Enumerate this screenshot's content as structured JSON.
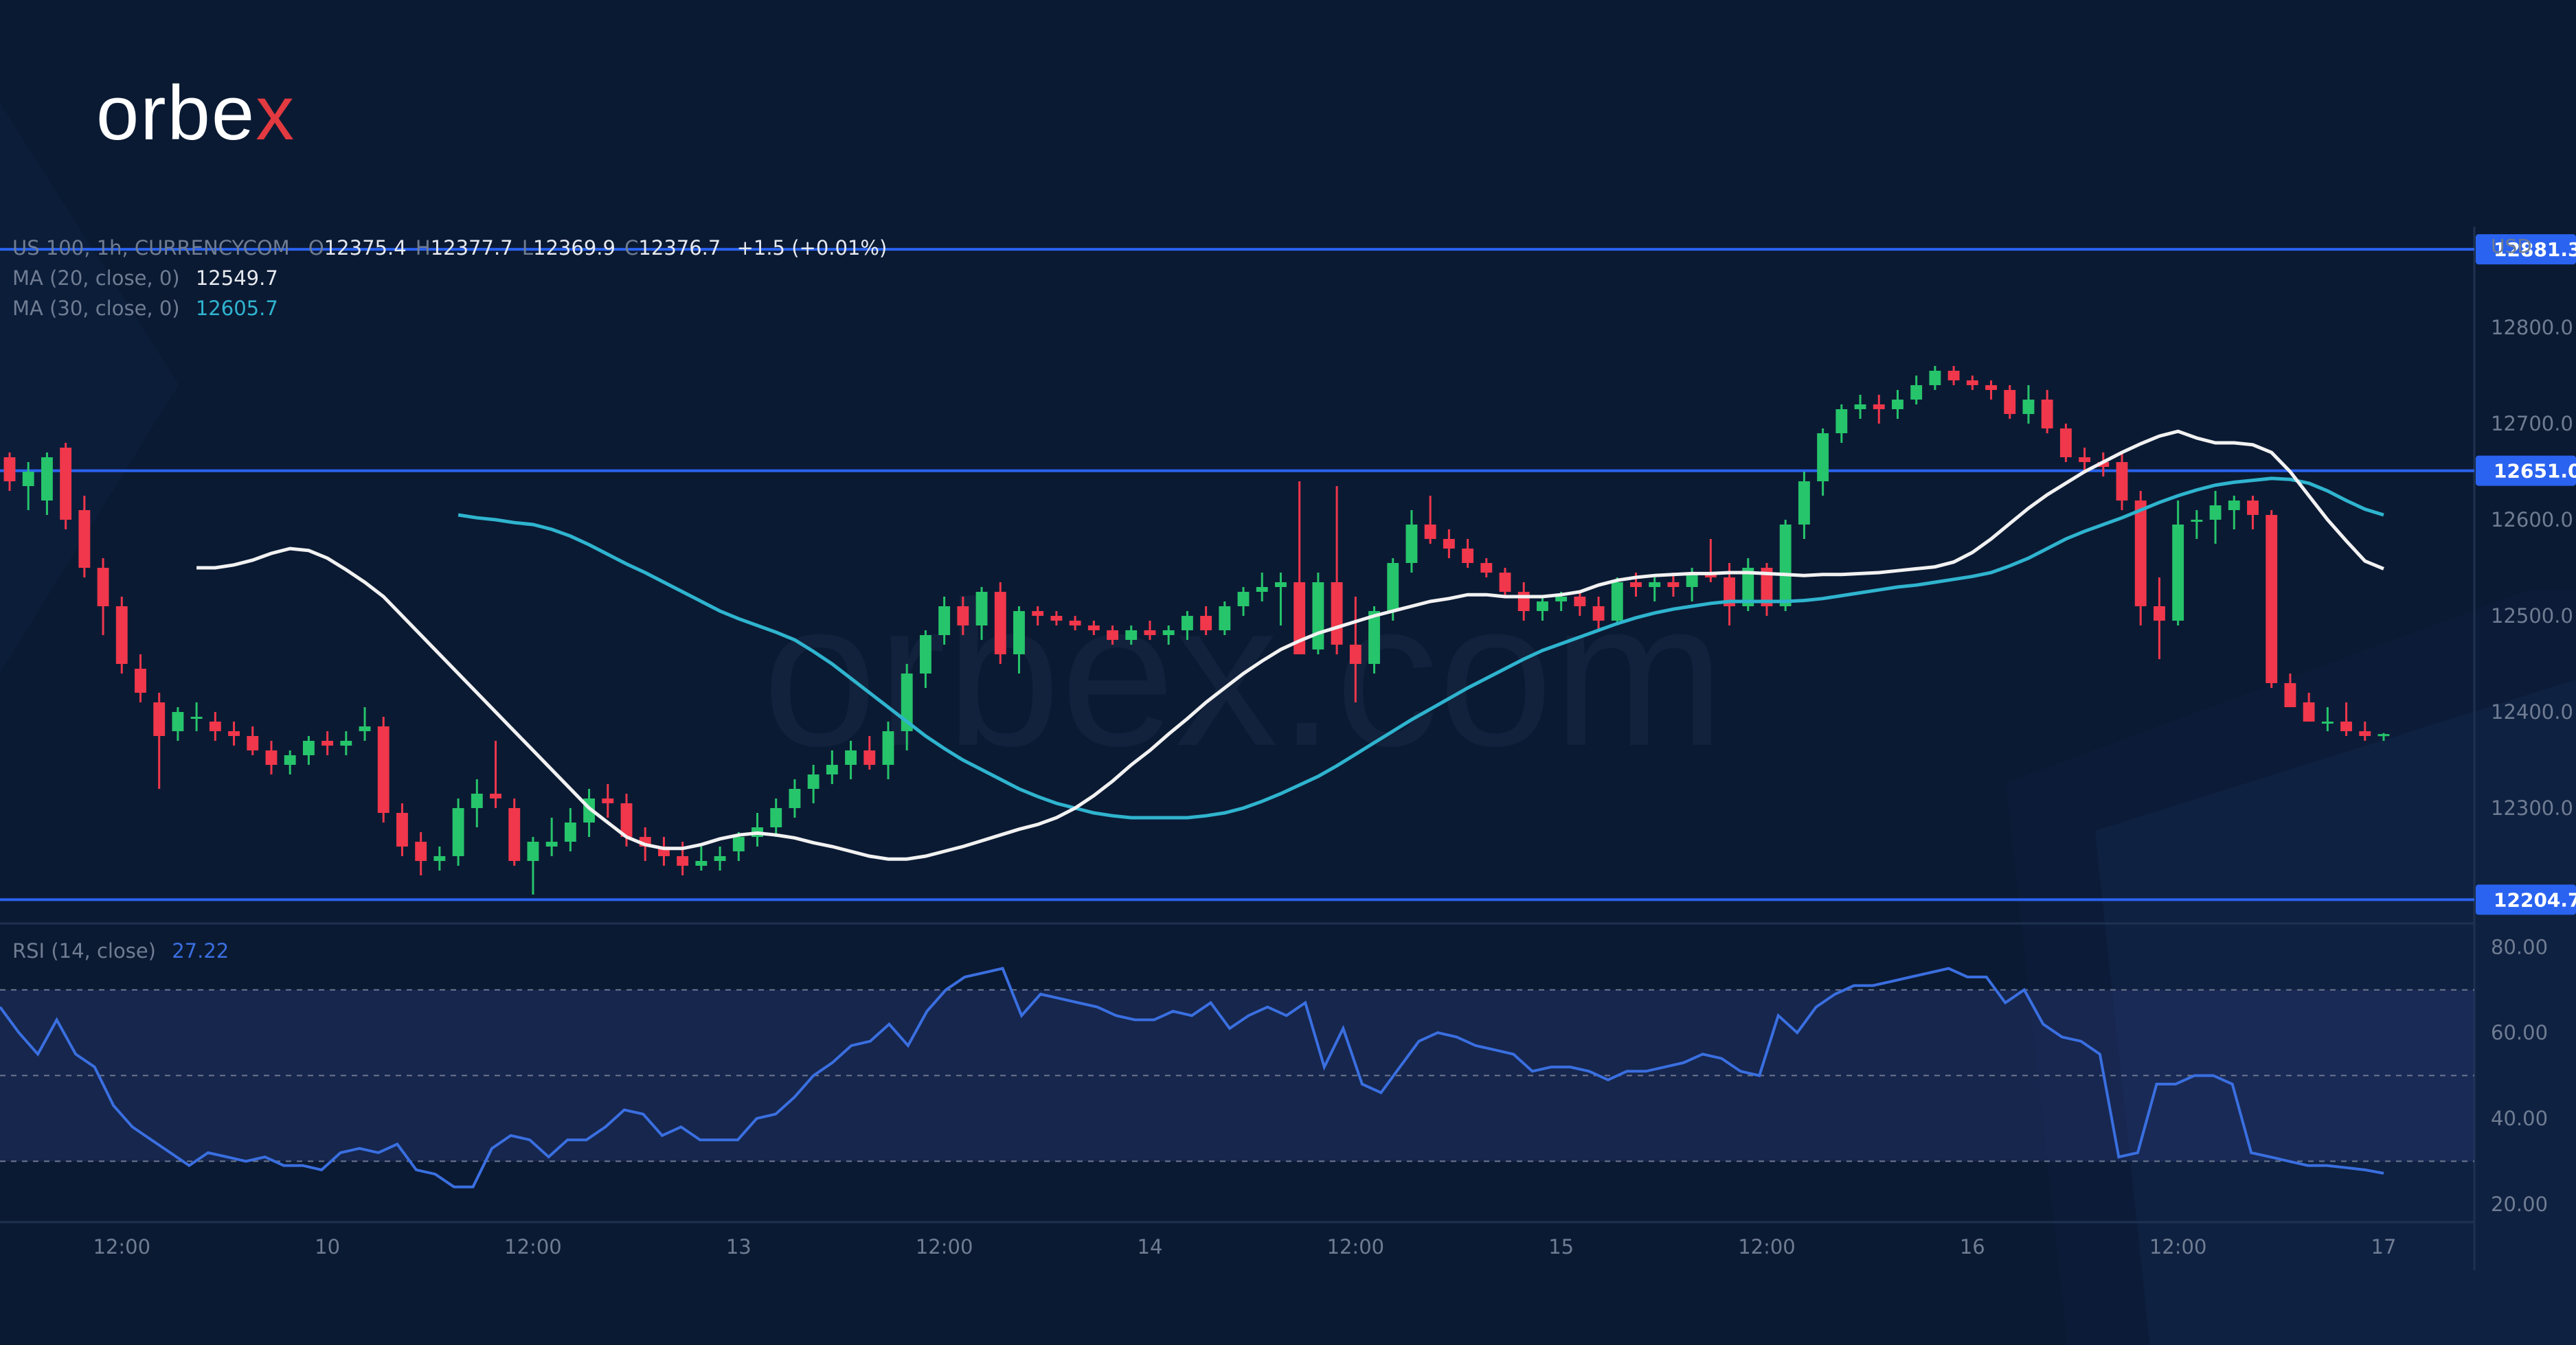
{
  "brand": {
    "logo_main": "orbe",
    "logo_x": "x",
    "watermark": "orbex.com"
  },
  "legend": {
    "symbol": "US 100, 1h, CURRENCYCOM",
    "o_label": "O",
    "o": "12375.4",
    "h_label": "H",
    "h": "12377.7",
    "l_label": "L",
    "l": "12369.9",
    "c_label": "C",
    "c": "12376.7",
    "change": "+1.5 (+0.01%)",
    "ma20_label": "MA (20, close, 0)",
    "ma20_value": "12549.7",
    "ma30_label": "MA (30, close, 0)",
    "ma30_value": "12605.7",
    "rsi_label": "RSI (14, close)",
    "rsi_value": "27.22"
  },
  "chart_data": {
    "type": "candlestick",
    "currency": "USD",
    "price_axis": {
      "min": 12180,
      "max": 12905,
      "ticks": [
        "12800.0",
        "12700.0",
        "12600.0",
        "12500.0",
        "12400.0",
        "12300.0"
      ],
      "tick_values": [
        12800,
        12700,
        12600,
        12500,
        12400,
        12300
      ]
    },
    "levels": [
      {
        "value": 12881.3,
        "label": "12881.3"
      },
      {
        "value": 12651.0,
        "label": "12651.0"
      },
      {
        "value": 12204.7,
        "label": "12204.7"
      }
    ],
    "x_ticks": [
      {
        "bar": 6,
        "label": "12:00"
      },
      {
        "bar": 17,
        "label": "10"
      },
      {
        "bar": 28,
        "label": "12:00"
      },
      {
        "bar": 39,
        "label": "13"
      },
      {
        "bar": 50,
        "label": "12:00"
      },
      {
        "bar": 61,
        "label": "14"
      },
      {
        "bar": 72,
        "label": "12:00"
      },
      {
        "bar": 83,
        "label": "15"
      },
      {
        "bar": 94,
        "label": "12:00"
      },
      {
        "bar": 105,
        "label": "16"
      },
      {
        "bar": 116,
        "label": "12:00"
      },
      {
        "bar": 127,
        "label": "17"
      }
    ],
    "ohlc": [
      [
        12665,
        12670,
        12630,
        12640
      ],
      [
        12635,
        12660,
        12610,
        12650
      ],
      [
        12620,
        12670,
        12605,
        12665
      ],
      [
        12675,
        12680,
        12590,
        12600
      ],
      [
        12610,
        12625,
        12540,
        12550
      ],
      [
        12550,
        12560,
        12480,
        12510
      ],
      [
        12510,
        12520,
        12440,
        12450
      ],
      [
        12445,
        12460,
        12410,
        12420
      ],
      [
        12410,
        12420,
        12320,
        12375
      ],
      [
        12380,
        12405,
        12370,
        12400
      ],
      [
        12395,
        12410,
        12380,
        12395
      ],
      [
        12390,
        12400,
        12370,
        12380
      ],
      [
        12380,
        12390,
        12365,
        12375
      ],
      [
        12375,
        12385,
        12355,
        12360
      ],
      [
        12360,
        12370,
        12335,
        12345
      ],
      [
        12345,
        12360,
        12335,
        12355
      ],
      [
        12355,
        12375,
        12345,
        12370
      ],
      [
        12370,
        12380,
        12355,
        12365
      ],
      [
        12365,
        12380,
        12355,
        12370
      ],
      [
        12380,
        12405,
        12370,
        12385
      ],
      [
        12385,
        12395,
        12285,
        12295
      ],
      [
        12295,
        12305,
        12250,
        12260
      ],
      [
        12265,
        12275,
        12230,
        12245
      ],
      [
        12245,
        12260,
        12235,
        12250
      ],
      [
        12250,
        12310,
        12240,
        12300
      ],
      [
        12300,
        12330,
        12280,
        12315
      ],
      [
        12315,
        12370,
        12300,
        12310
      ],
      [
        12300,
        12310,
        12240,
        12245
      ],
      [
        12245,
        12270,
        12210,
        12265
      ],
      [
        12260,
        12290,
        12250,
        12265
      ],
      [
        12265,
        12300,
        12255,
        12285
      ],
      [
        12285,
        12320,
        12270,
        12310
      ],
      [
        12310,
        12325,
        12290,
        12305
      ],
      [
        12305,
        12315,
        12260,
        12270
      ],
      [
        12270,
        12280,
        12245,
        12260
      ],
      [
        12260,
        12270,
        12240,
        12250
      ],
      [
        12250,
        12265,
        12230,
        12240
      ],
      [
        12240,
        12260,
        12235,
        12245
      ],
      [
        12245,
        12260,
        12235,
        12250
      ],
      [
        12255,
        12275,
        12245,
        12270
      ],
      [
        12270,
        12295,
        12260,
        12280
      ],
      [
        12280,
        12310,
        12270,
        12300
      ],
      [
        12300,
        12330,
        12290,
        12320
      ],
      [
        12320,
        12345,
        12305,
        12335
      ],
      [
        12335,
        12360,
        12325,
        12345
      ],
      [
        12345,
        12370,
        12330,
        12360
      ],
      [
        12360,
        12375,
        12340,
        12345
      ],
      [
        12345,
        12390,
        12330,
        12380
      ],
      [
        12380,
        12450,
        12360,
        12440
      ],
      [
        12440,
        12485,
        12425,
        12480
      ],
      [
        12480,
        12520,
        12470,
        12510
      ],
      [
        12510,
        12520,
        12480,
        12490
      ],
      [
        12490,
        12530,
        12475,
        12525
      ],
      [
        12525,
        12535,
        12450,
        12460
      ],
      [
        12460,
        12510,
        12440,
        12505
      ],
      [
        12505,
        12510,
        12490,
        12500
      ],
      [
        12500,
        12505,
        12490,
        12495
      ],
      [
        12495,
        12500,
        12485,
        12490
      ],
      [
        12490,
        12495,
        12480,
        12485
      ],
      [
        12485,
        12490,
        12470,
        12475
      ],
      [
        12475,
        12490,
        12470,
        12485
      ],
      [
        12485,
        12495,
        12475,
        12480
      ],
      [
        12480,
        12490,
        12470,
        12485
      ],
      [
        12485,
        12505,
        12475,
        12500
      ],
      [
        12500,
        12510,
        12480,
        12485
      ],
      [
        12485,
        12515,
        12480,
        12510
      ],
      [
        12510,
        12530,
        12500,
        12525
      ],
      [
        12525,
        12545,
        12515,
        12530
      ],
      [
        12530,
        12545,
        12490,
        12535
      ],
      [
        12535,
        12640,
        12460,
        12460
      ],
      [
        12465,
        12545,
        12460,
        12535
      ],
      [
        12535,
        12635,
        12460,
        12470
      ],
      [
        12470,
        12520,
        12410,
        12450
      ],
      [
        12450,
        12510,
        12440,
        12505
      ],
      [
        12505,
        12560,
        12495,
        12555
      ],
      [
        12555,
        12610,
        12545,
        12595
      ],
      [
        12595,
        12625,
        12575,
        12580
      ],
      [
        12580,
        12590,
        12560,
        12570
      ],
      [
        12570,
        12580,
        12550,
        12555
      ],
      [
        12555,
        12560,
        12540,
        12545
      ],
      [
        12545,
        12550,
        12520,
        12525
      ],
      [
        12525,
        12535,
        12495,
        12505
      ],
      [
        12505,
        12520,
        12495,
        12515
      ],
      [
        12515,
        12525,
        12505,
        12520
      ],
      [
        12520,
        12525,
        12500,
        12510
      ],
      [
        12510,
        12520,
        12485,
        12495
      ],
      [
        12495,
        12540,
        12490,
        12535
      ],
      [
        12535,
        12545,
        12520,
        12530
      ],
      [
        12530,
        12540,
        12515,
        12535
      ],
      [
        12535,
        12545,
        12520,
        12530
      ],
      [
        12530,
        12550,
        12515,
        12545
      ],
      [
        12545,
        12580,
        12535,
        12540
      ],
      [
        12540,
        12555,
        12490,
        12510
      ],
      [
        12510,
        12560,
        12505,
        12550
      ],
      [
        12550,
        12555,
        12500,
        12510
      ],
      [
        12510,
        12600,
        12505,
        12595
      ],
      [
        12595,
        12650,
        12580,
        12640
      ],
      [
        12640,
        12695,
        12625,
        12690
      ],
      [
        12690,
        12720,
        12680,
        12715
      ],
      [
        12715,
        12730,
        12705,
        12720
      ],
      [
        12720,
        12730,
        12700,
        12715
      ],
      [
        12715,
        12735,
        12705,
        12725
      ],
      [
        12725,
        12750,
        12720,
        12740
      ],
      [
        12740,
        12760,
        12735,
        12755
      ],
      [
        12755,
        12760,
        12740,
        12745
      ],
      [
        12745,
        12750,
        12735,
        12740
      ],
      [
        12740,
        12745,
        12725,
        12735
      ],
      [
        12735,
        12740,
        12705,
        12710
      ],
      [
        12710,
        12740,
        12700,
        12725
      ],
      [
        12725,
        12735,
        12690,
        12695
      ],
      [
        12695,
        12700,
        12660,
        12665
      ],
      [
        12665,
        12675,
        12650,
        12660
      ],
      [
        12660,
        12670,
        12645,
        12655
      ],
      [
        12660,
        12670,
        12610,
        12620
      ],
      [
        12620,
        12630,
        12490,
        12510
      ],
      [
        12510,
        12540,
        12455,
        12495
      ],
      [
        12495,
        12620,
        12490,
        12595
      ],
      [
        12600,
        12610,
        12580,
        12600
      ],
      [
        12600,
        12630,
        12575,
        12615
      ],
      [
        12610,
        12625,
        12590,
        12620
      ],
      [
        12620,
        12625,
        12590,
        12605
      ],
      [
        12605,
        12610,
        12425,
        12430
      ],
      [
        12430,
        12440,
        12410,
        12405
      ],
      [
        12410,
        12420,
        12390,
        12390
      ],
      [
        12390,
        12405,
        12380,
        12390
      ],
      [
        12390,
        12410,
        12375,
        12380
      ],
      [
        12380,
        12390,
        12370,
        12375
      ],
      [
        12375,
        12378,
        12370,
        12377
      ]
    ],
    "ma20": [
      12550,
      12550,
      12553,
      12558,
      12565,
      12570,
      12568,
      12560,
      12548,
      12535,
      12520,
      12500,
      12480,
      12460,
      12440,
      12420,
      12400,
      12380,
      12360,
      12340,
      12320,
      12300,
      12285,
      12270,
      12262,
      12258,
      12258,
      12262,
      12268,
      12272,
      12274,
      12272,
      12269,
      12264,
      12260,
      12255,
      12250,
      12247,
      12247,
      12250,
      12255,
      12260,
      12266,
      12272,
      12278,
      12283,
      12290,
      12300,
      12313,
      12328,
      12345,
      12360,
      12377,
      12393,
      12410,
      12425,
      12440,
      12453,
      12465,
      12474,
      12482,
      12488,
      12494,
      12500,
      12505,
      12510,
      12515,
      12518,
      12522,
      12522,
      12520,
      12520,
      12520,
      12522,
      12525,
      12532,
      12537,
      12540,
      12542,
      12543,
      12544,
      12544,
      12545,
      12545,
      12544,
      12543,
      12542,
      12543,
      12543,
      12544,
      12545,
      12547,
      12549,
      12551,
      12556,
      12566,
      12580,
      12596,
      12612,
      12626,
      12638,
      12650,
      12660,
      12670,
      12679,
      12687,
      12692,
      12685,
      12680,
      12680,
      12678,
      12670,
      12650,
      12625,
      12600,
      12578,
      12557,
      12549
    ],
    "ma30": [
      12605,
      12602,
      12600,
      12597,
      12595,
      12590,
      12583,
      12574,
      12564,
      12554,
      12545,
      12535,
      12525,
      12515,
      12505,
      12497,
      12490,
      12483,
      12475,
      12463,
      12450,
      12435,
      12420,
      12405,
      12390,
      12375,
      12362,
      12350,
      12340,
      12330,
      12320,
      12312,
      12305,
      12300,
      12295,
      12292,
      12290,
      12290,
      12290,
      12290,
      12292,
      12295,
      12300,
      12307,
      12315,
      12324,
      12333,
      12344,
      12356,
      12368,
      12380,
      12392,
      12403,
      12414,
      12425,
      12435,
      12445,
      12455,
      12464,
      12471,
      12478,
      12485,
      12492,
      12498,
      12503,
      12507,
      12510,
      12513,
      12515,
      12515,
      12515,
      12515,
      12516,
      12518,
      12521,
      12524,
      12527,
      12530,
      12532,
      12535,
      12538,
      12541,
      12545,
      12552,
      12560,
      12570,
      12580,
      12588,
      12595,
      12602,
      12610,
      12618,
      12625,
      12631,
      12636,
      12639,
      12641,
      12643,
      12642,
      12638,
      12630,
      12620,
      12611,
      12605
    ],
    "rsi": {
      "min": 15.8,
      "max": 85.5,
      "ticks": [
        "80.00",
        "60.00",
        "40.00",
        "20.00"
      ],
      "tick_values": [
        80,
        60,
        40,
        20
      ],
      "band": [
        30,
        70
      ],
      "mid": 50,
      "values": [
        66,
        60,
        55,
        63,
        55,
        52,
        43,
        38,
        35,
        32,
        29,
        32,
        31,
        30,
        31,
        29,
        29,
        28,
        32,
        33,
        32,
        34,
        28,
        27,
        24,
        24,
        33,
        36,
        35,
        31,
        35,
        35,
        38,
        42,
        41,
        36,
        38,
        35,
        35,
        35,
        40,
        41,
        45,
        50,
        53,
        57,
        58,
        62,
        57,
        65,
        70,
        73,
        74,
        75,
        64,
        69,
        68,
        67,
        66,
        64,
        63,
        63,
        65,
        64,
        67,
        61,
        64,
        66,
        64,
        67,
        52,
        61,
        48,
        46,
        52,
        58,
        60,
        59,
        57,
        56,
        55,
        51,
        52,
        52,
        51,
        49,
        51,
        51,
        52,
        53,
        55,
        54,
        51,
        50,
        64,
        60,
        66,
        69,
        71,
        71,
        72,
        73,
        74,
        75,
        73,
        73,
        67,
        70,
        62,
        59,
        58,
        55,
        31,
        32,
        48,
        48,
        50,
        50,
        48,
        32,
        31,
        30,
        29,
        29,
        28.5,
        28,
        27.2
      ]
    }
  }
}
